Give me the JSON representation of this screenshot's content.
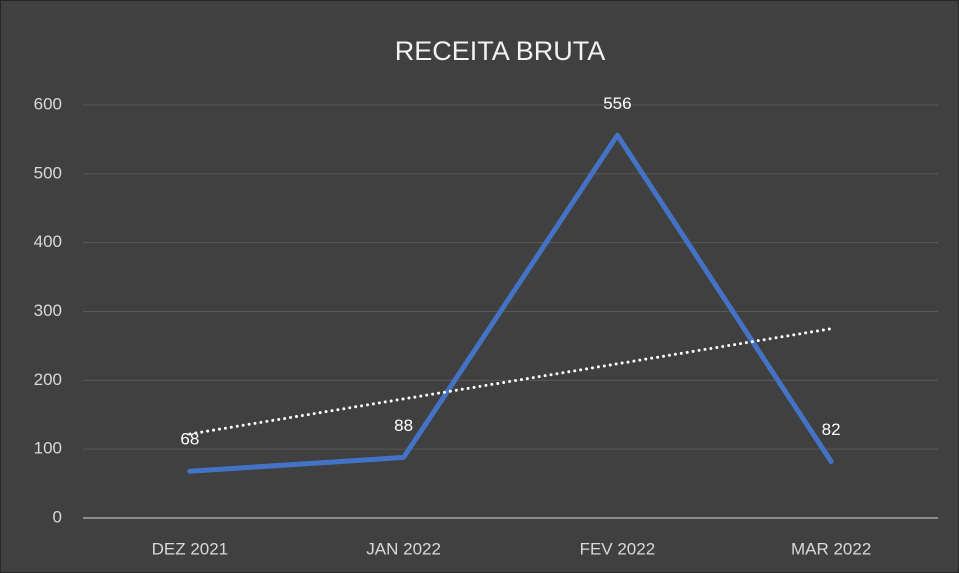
{
  "chart_data": {
    "type": "line",
    "title": "RECEITA BRUTA",
    "categories": [
      "DEZ 2021",
      "JAN 2022",
      "FEV 2022",
      "MAR 2022"
    ],
    "series": [
      {
        "name": "RECEITA BRUTA",
        "color": "#4472c4",
        "values": [
          68,
          88,
          556,
          82
        ]
      }
    ],
    "ylim": [
      0,
      600
    ],
    "yticks": [
      0,
      100,
      200,
      300,
      400,
      500,
      600
    ],
    "grid": true,
    "data_labels": true,
    "trendline": "linear"
  }
}
